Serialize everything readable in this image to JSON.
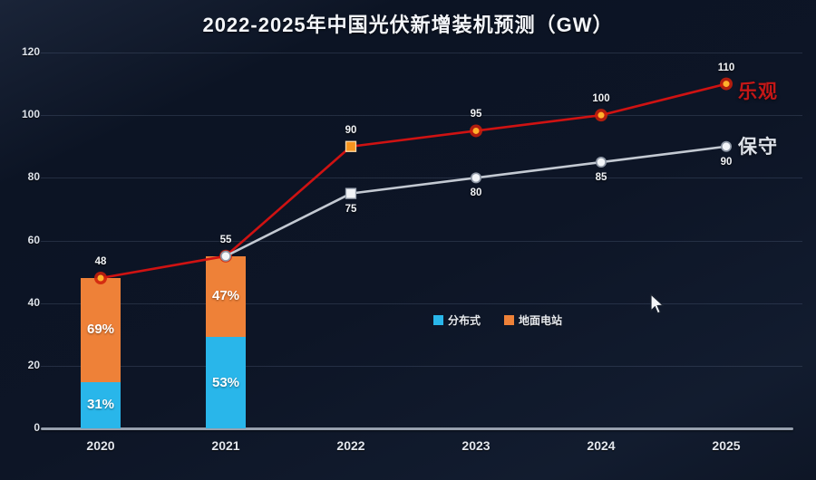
{
  "title": "2022-2025年中国光伏新增装机预测（GW）",
  "chart_data": {
    "type": "combo-stacked-bar-line",
    "title": "2022-2025年中国光伏新增装机预测（GW）",
    "unit": "GW",
    "categories": [
      "2020",
      "2021",
      "2022",
      "2023",
      "2024",
      "2025"
    ],
    "ylim": [
      0,
      120
    ],
    "yticks": [
      "0",
      "20",
      "40",
      "60",
      "80",
      "100",
      "120"
    ],
    "ytick_values": [
      0,
      20,
      40,
      60,
      80,
      100,
      120
    ],
    "grid": true,
    "bars": {
      "categories": [
        "2020",
        "2021"
      ],
      "totals": [
        48,
        55
      ],
      "segments": [
        {
          "name": "分布式",
          "color": "#29b6ea",
          "fractions": [
            0.31,
            0.53
          ],
          "percent_labels": [
            "31%",
            "53%"
          ]
        },
        {
          "name": "地面电站",
          "color": "#ee8138",
          "fractions": [
            0.69,
            0.47
          ],
          "percent_labels": [
            "69%",
            "47%"
          ]
        }
      ]
    },
    "lines": [
      {
        "name": "乐观",
        "color": "#cf1212",
        "name_color": "#c41717",
        "categories": [
          "2020",
          "2021",
          "2022",
          "2023",
          "2024",
          "2025"
        ],
        "values": [
          48,
          55,
          90,
          95,
          100,
          110
        ],
        "labels": [
          "48",
          "55",
          "90",
          "95",
          "100",
          "110"
        ],
        "label_side": "above"
      },
      {
        "name": "保守",
        "color": "#c3c9d2",
        "name_color": "#dde1e8",
        "categories": [
          "2021",
          "2022",
          "2023",
          "2024",
          "2025"
        ],
        "values": [
          55,
          75,
          80,
          85,
          90
        ],
        "labels": [
          null,
          "75",
          "80",
          "85",
          "90"
        ],
        "label_side": "below"
      }
    ],
    "legend": [
      {
        "label": "分布式",
        "color": "#29b6ea"
      },
      {
        "label": "地面电站",
        "color": "#ee8138"
      }
    ],
    "legend_position": "center-middle"
  }
}
